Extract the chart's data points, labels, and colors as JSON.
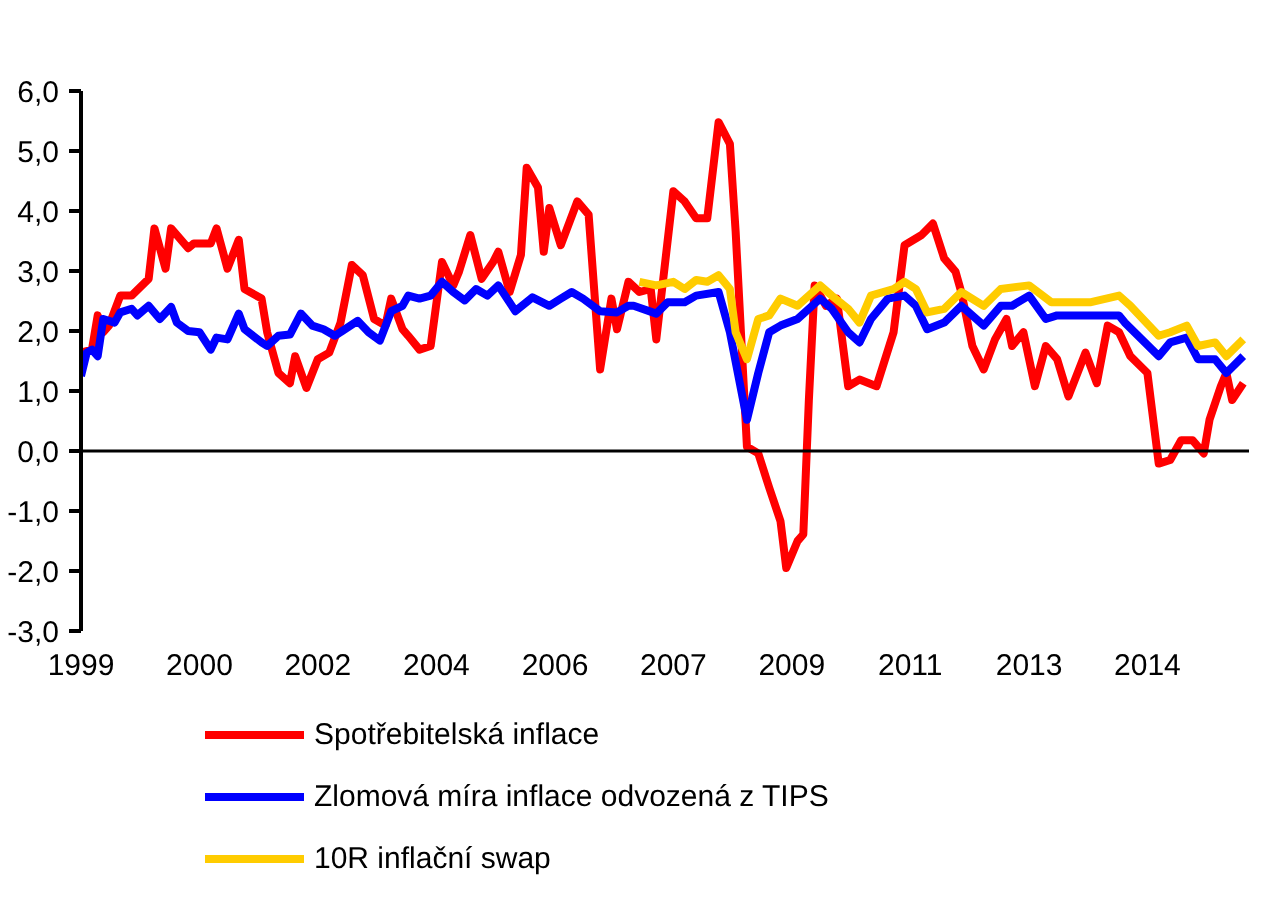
{
  "chart_data": {
    "type": "line",
    "xlim": [
      "1999-01",
      "2016-04"
    ],
    "ylim": [
      -3,
      6
    ],
    "xticks": [
      {
        "value": "1999-01",
        "label": "1999"
      },
      {
        "value": "2000-10",
        "label": "2000"
      },
      {
        "value": "2002-07",
        "label": "2002"
      },
      {
        "value": "2004-04",
        "label": "2004"
      },
      {
        "value": "2006-01",
        "label": "2006"
      },
      {
        "value": "2007-10",
        "label": "2007"
      },
      {
        "value": "2009-07",
        "label": "2009"
      },
      {
        "value": "2011-04",
        "label": "2011"
      },
      {
        "value": "2013-01",
        "label": "2013"
      },
      {
        "value": "2014-10",
        "label": "2014"
      }
    ],
    "yticks": [
      {
        "value": -3,
        "label": "-3,0"
      },
      {
        "value": -2,
        "label": "-2,0"
      },
      {
        "value": -1,
        "label": "-1,0"
      },
      {
        "value": 0,
        "label": "0,0"
      },
      {
        "value": 1,
        "label": "1,0"
      },
      {
        "value": 2,
        "label": "2,0"
      },
      {
        "value": 3,
        "label": "3,0"
      },
      {
        "value": 4,
        "label": "4,0"
      },
      {
        "value": 5,
        "label": "5,0"
      },
      {
        "value": 6,
        "label": "6,0"
      }
    ],
    "grid": false,
    "legend": "bottom",
    "marker": "none",
    "line_style": "solid",
    "ref_lines": [
      {
        "axis": "y",
        "value": 0,
        "color": "#000000"
      }
    ],
    "series": [
      {
        "name": "Spotřebitelská inflace",
        "color": "#ff0000",
        "x": [
          "1999-01",
          "1999-03",
          "1999-04",
          "1999-05",
          "1999-06",
          "1999-08",
          "1999-10",
          "2000-01",
          "2000-02",
          "2000-04",
          "2000-05",
          "2000-08",
          "2000-09",
          "2000-12",
          "2001-01",
          "2001-03",
          "2001-05",
          "2001-06",
          "2001-09",
          "2001-10",
          "2001-12",
          "2002-02",
          "2002-03",
          "2002-05",
          "2002-07",
          "2002-09",
          "2002-11",
          "2003-01",
          "2003-03",
          "2003-05",
          "2003-07",
          "2003-08",
          "2003-10",
          "2003-11",
          "2004-01",
          "2004-03",
          "2004-05",
          "2004-07",
          "2004-08",
          "2004-10",
          "2004-12",
          "2005-02",
          "2005-03",
          "2005-05",
          "2005-07",
          "2005-08",
          "2005-10",
          "2005-11",
          "2005-12",
          "2006-02",
          "2006-05",
          "2006-07",
          "2006-09",
          "2006-11",
          "2006-12",
          "2007-02",
          "2007-04",
          "2007-06",
          "2007-07",
          "2007-10",
          "2007-12",
          "2008-02",
          "2008-04",
          "2008-06",
          "2008-08",
          "2008-09",
          "2008-11",
          "2009-01",
          "2009-03",
          "2009-05",
          "2009-06",
          "2009-08",
          "2009-09",
          "2009-10",
          "2009-11",
          "2010-01",
          "2010-03",
          "2010-05",
          "2010-07",
          "2010-10",
          "2011-01",
          "2011-03",
          "2011-06",
          "2011-08",
          "2011-10",
          "2011-12",
          "2012-01",
          "2012-03",
          "2012-05",
          "2012-07",
          "2012-09",
          "2012-10",
          "2012-12",
          "2013-02",
          "2013-04",
          "2013-06",
          "2013-08",
          "2013-11",
          "2014-01",
          "2014-03",
          "2014-05",
          "2014-07",
          "2014-10",
          "2014-12",
          "2015-02",
          "2015-04",
          "2015-06",
          "2015-08",
          "2015-09",
          "2015-11",
          "2015-12",
          "2016-01",
          "2016-03"
        ],
        "values": [
          1.64,
          1.69,
          2.26,
          1.98,
          2.09,
          2.59,
          2.59,
          2.87,
          3.71,
          3.04,
          3.71,
          3.38,
          3.46,
          3.46,
          3.71,
          3.04,
          3.52,
          2.7,
          2.54,
          1.98,
          1.3,
          1.13,
          1.58,
          1.05,
          1.53,
          1.64,
          2.14,
          3.1,
          2.93,
          2.2,
          2.09,
          2.54,
          2.03,
          1.92,
          1.69,
          1.75,
          3.15,
          2.76,
          2.99,
          3.6,
          2.87,
          3.15,
          3.32,
          2.65,
          3.27,
          4.72,
          4.39,
          3.32,
          4.05,
          3.43,
          4.16,
          3.94,
          1.36,
          2.54,
          2.03,
          2.82,
          2.65,
          2.7,
          1.86,
          4.33,
          4.16,
          3.88,
          3.88,
          5.48,
          5.12,
          3.66,
          0.07,
          -0.04,
          -0.61,
          -1.17,
          -1.95,
          -1.5,
          -1.39,
          0.85,
          2.76,
          2.42,
          2.54,
          1.08,
          1.19,
          1.08,
          1.98,
          3.43,
          3.6,
          3.79,
          3.21,
          2.99,
          2.65,
          1.75,
          1.36,
          1.86,
          2.2,
          1.75,
          1.98,
          1.08,
          1.75,
          1.53,
          0.91,
          1.64,
          1.13,
          2.09,
          1.98,
          1.58,
          1.3,
          -0.21,
          -0.15,
          0.18,
          0.18,
          -0.04,
          0.52,
          1.08,
          1.3,
          0.85,
          1.13
        ]
      },
      {
        "name": "Zlomová míra inflace odvozená z TIPS",
        "color": "#0000ff",
        "x": [
          "1999-01",
          "1999-02",
          "1999-03",
          "1999-04",
          "1999-05",
          "1999-07",
          "1999-08",
          "1999-10",
          "1999-11",
          "2000-01",
          "2000-03",
          "2000-05",
          "2000-06",
          "2000-08",
          "2000-10",
          "2000-12",
          "2001-01",
          "2001-03",
          "2001-05",
          "2001-06",
          "2001-09",
          "2001-10",
          "2001-12",
          "2002-02",
          "2002-04",
          "2002-06",
          "2002-08",
          "2002-10",
          "2002-11",
          "2003-02",
          "2003-04",
          "2003-06",
          "2003-08",
          "2003-10",
          "2003-11",
          "2004-01",
          "2004-03",
          "2004-05",
          "2004-07",
          "2004-09",
          "2004-11",
          "2005-01",
          "2005-03",
          "2005-06",
          "2005-09",
          "2005-12",
          "2006-02",
          "2006-04",
          "2006-06",
          "2006-09",
          "2006-12",
          "2007-02",
          "2007-03",
          "2007-07",
          "2007-09",
          "2007-12",
          "2008-02",
          "2008-06",
          "2008-08",
          "2008-11",
          "2009-01",
          "2009-03",
          "2009-05",
          "2009-08",
          "2009-12",
          "2010-02",
          "2010-05",
          "2010-07",
          "2010-09",
          "2010-12",
          "2011-03",
          "2011-05",
          "2011-07",
          "2011-10",
          "2012-01",
          "2012-05",
          "2012-08",
          "2012-10",
          "2013-01",
          "2013-04",
          "2013-06",
          "2013-11",
          "2014-05",
          "2014-06",
          "2014-12",
          "2015-02",
          "2015-05",
          "2015-07",
          "2015-10",
          "2015-12",
          "2016-03"
        ],
        "values": [
          1.25,
          1.64,
          1.69,
          1.58,
          2.2,
          2.14,
          2.31,
          2.37,
          2.26,
          2.42,
          2.2,
          2.4,
          2.14,
          2.0,
          1.98,
          1.69,
          1.89,
          1.86,
          2.29,
          2.03,
          1.81,
          1.75,
          1.92,
          1.94,
          2.29,
          2.09,
          2.03,
          1.92,
          1.98,
          2.17,
          1.98,
          1.84,
          2.33,
          2.42,
          2.59,
          2.54,
          2.59,
          2.82,
          2.65,
          2.51,
          2.7,
          2.59,
          2.76,
          2.33,
          2.56,
          2.42,
          2.54,
          2.65,
          2.54,
          2.33,
          2.31,
          2.42,
          2.42,
          2.29,
          2.48,
          2.48,
          2.59,
          2.65,
          1.98,
          0.52,
          1.3,
          1.98,
          2.09,
          2.2,
          2.54,
          2.37,
          1.98,
          1.81,
          2.2,
          2.54,
          2.59,
          2.42,
          2.03,
          2.14,
          2.42,
          2.09,
          2.42,
          2.42,
          2.59,
          2.2,
          2.26,
          2.26,
          2.26,
          2.14,
          1.58,
          1.81,
          1.89,
          1.53,
          1.53,
          1.3,
          1.58
        ]
      },
      {
        "name": "10R inflační swap",
        "color": "#ffcc00",
        "x": [
          "2007-04",
          "2007-07",
          "2007-10",
          "2007-12",
          "2008-02",
          "2008-04",
          "2008-06",
          "2008-08",
          "2008-09",
          "2008-11",
          "2009-01",
          "2009-03",
          "2009-05",
          "2009-08",
          "2009-12",
          "2010-02",
          "2010-05",
          "2010-07",
          "2010-09",
          "2011-01",
          "2011-03",
          "2011-05",
          "2011-07",
          "2011-10",
          "2012-01",
          "2012-05",
          "2012-08",
          "2013-01",
          "2013-05",
          "2013-09",
          "2013-12",
          "2014-05",
          "2014-07",
          "2014-12",
          "2015-02",
          "2015-05",
          "2015-07",
          "2015-10",
          "2015-12",
          "2016-03"
        ],
        "values": [
          2.82,
          2.76,
          2.82,
          2.7,
          2.85,
          2.82,
          2.93,
          2.7,
          1.98,
          1.53,
          2.2,
          2.26,
          2.54,
          2.42,
          2.76,
          2.59,
          2.37,
          2.14,
          2.59,
          2.7,
          2.82,
          2.7,
          2.31,
          2.37,
          2.65,
          2.42,
          2.7,
          2.76,
          2.48,
          2.48,
          2.48,
          2.59,
          2.42,
          1.92,
          1.98,
          2.09,
          1.75,
          1.81,
          1.58,
          1.86
        ]
      }
    ]
  }
}
